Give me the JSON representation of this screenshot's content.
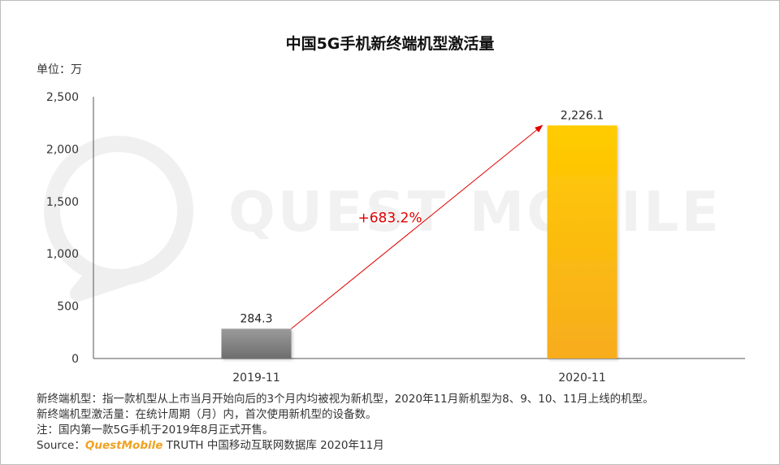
{
  "title": "中国5G手机新终端机型激活量",
  "unit": "单位：万",
  "watermark_text": "QUEST MOBILE",
  "chart_data": {
    "type": "bar",
    "categories": [
      "2019-11",
      "2020-11"
    ],
    "values": [
      284.3,
      2226.1
    ],
    "value_labels": [
      "284.3",
      "2,226.1"
    ],
    "ylim": [
      0,
      2500
    ],
    "yticks": [
      0,
      500,
      1000,
      1500,
      2000,
      2500
    ],
    "ytick_labels": [
      "0",
      "500",
      "1,000",
      "1,500",
      "2,000",
      "2,500"
    ],
    "bar_colors": [
      "#8c8c8c",
      "#f7b60d"
    ],
    "growth_label": "+683.2%",
    "growth_color": "#e00000",
    "grid": false
  },
  "notes": [
    "新终端机型：指一款机型从上市当月开始向后的3个月内均被视为新机型，2020年11月新机型为8、9、10、11月上线的机型。",
    "新终端机型激活量：在统计周期（月）内，首次使用新机型的设备数。",
    "注：国内第一款5G手机于2019年8月正式开售。"
  ],
  "source": {
    "prefix": "Source：",
    "brand": "QuestMobile",
    "suffix": " TRUTH 中国移动互联网数据库 2020年11月"
  }
}
